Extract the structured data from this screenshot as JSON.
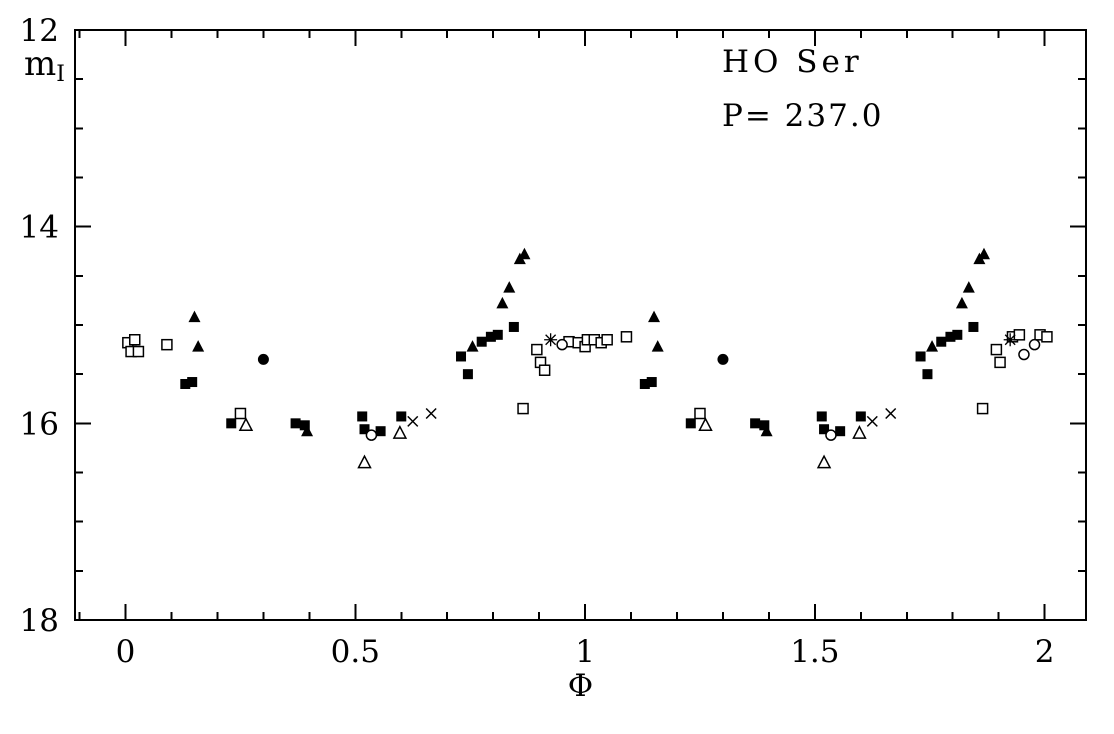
{
  "annotations": {
    "star_name": "HO Ser",
    "period_label": "P= 237.0"
  },
  "axis_labels": {
    "y_main": "m",
    "y_sub": "I",
    "x": "Φ"
  },
  "chart_data": {
    "type": "scatter",
    "title": "HO Ser",
    "annotation": "P= 237.0",
    "xlabel": "Φ",
    "ylabel": "m_I",
    "xlim": [
      -0.11,
      2.09
    ],
    "ylim": [
      18,
      12
    ],
    "y_inverted": true,
    "grid": false,
    "legend": "none",
    "x_ticks": {
      "major": [
        0,
        0.5,
        1,
        1.5,
        2
      ],
      "labels": [
        "0",
        "0.5",
        "1",
        "1.5",
        "2"
      ],
      "minor_step": 0.1
    },
    "y_ticks": {
      "major": [
        12,
        14,
        16,
        18
      ],
      "labels": [
        "12",
        "14",
        "16",
        "18"
      ],
      "minor_step": 0.5
    },
    "series": [
      {
        "name": "filled squares",
        "marker": "filled-square",
        "points": [
          [
            0.13,
            15.6
          ],
          [
            0.145,
            15.58
          ],
          [
            0.23,
            16.0
          ],
          [
            0.37,
            16.0
          ],
          [
            0.39,
            16.02
          ],
          [
            0.515,
            15.93
          ],
          [
            0.52,
            16.06
          ],
          [
            0.555,
            16.08
          ],
          [
            0.6,
            15.93
          ],
          [
            0.73,
            15.32
          ],
          [
            0.745,
            15.5
          ],
          [
            0.775,
            15.17
          ],
          [
            0.795,
            15.12
          ],
          [
            0.81,
            15.1
          ],
          [
            0.845,
            15.02
          ],
          [
            1.13,
            15.6
          ],
          [
            1.145,
            15.58
          ],
          [
            1.23,
            16.0
          ],
          [
            1.37,
            16.0
          ],
          [
            1.39,
            16.02
          ],
          [
            1.515,
            15.93
          ],
          [
            1.52,
            16.06
          ],
          [
            1.555,
            16.08
          ],
          [
            1.6,
            15.93
          ],
          [
            1.73,
            15.32
          ],
          [
            1.745,
            15.5
          ],
          [
            1.775,
            15.17
          ],
          [
            1.795,
            15.12
          ],
          [
            1.81,
            15.1
          ],
          [
            1.845,
            15.02
          ]
        ]
      },
      {
        "name": "filled triangles",
        "marker": "filled-triangle",
        "points": [
          [
            0.15,
            14.92
          ],
          [
            0.158,
            15.22
          ],
          [
            0.395,
            16.08
          ],
          [
            0.755,
            15.22
          ],
          [
            0.82,
            14.78
          ],
          [
            0.835,
            14.62
          ],
          [
            0.858,
            14.33
          ],
          [
            0.868,
            14.28
          ],
          [
            1.15,
            14.92
          ],
          [
            1.158,
            15.22
          ],
          [
            1.395,
            16.08
          ],
          [
            1.755,
            15.22
          ],
          [
            1.82,
            14.78
          ],
          [
            1.835,
            14.62
          ],
          [
            1.858,
            14.33
          ],
          [
            1.868,
            14.28
          ]
        ]
      },
      {
        "name": "open squares",
        "marker": "open-square",
        "points": [
          [
            0.005,
            15.18
          ],
          [
            0.02,
            15.15
          ],
          [
            0.012,
            15.27
          ],
          [
            0.028,
            15.27
          ],
          [
            0.09,
            15.2
          ],
          [
            0.25,
            15.9
          ],
          [
            0.865,
            15.85
          ],
          [
            0.895,
            15.25
          ],
          [
            0.903,
            15.38
          ],
          [
            0.912,
            15.46
          ],
          [
            0.965,
            15.17
          ],
          [
            0.985,
            15.18
          ],
          [
            1.0,
            15.22
          ],
          [
            1.005,
            15.15
          ],
          [
            1.02,
            15.15
          ],
          [
            1.035,
            15.18
          ],
          [
            1.048,
            15.15
          ],
          [
            1.09,
            15.12
          ],
          [
            1.25,
            15.9
          ],
          [
            1.865,
            15.85
          ],
          [
            1.895,
            15.25
          ],
          [
            1.903,
            15.38
          ],
          [
            1.93,
            15.12
          ],
          [
            1.945,
            15.1
          ],
          [
            1.99,
            15.1
          ],
          [
            2.005,
            15.12
          ]
        ]
      },
      {
        "name": "open triangles",
        "marker": "open-triangle",
        "points": [
          [
            0.262,
            16.02
          ],
          [
            0.52,
            16.4
          ],
          [
            0.597,
            16.1
          ],
          [
            1.262,
            16.02
          ],
          [
            1.52,
            16.4
          ],
          [
            1.597,
            16.1
          ]
        ]
      },
      {
        "name": "filled circles",
        "marker": "filled-circle",
        "points": [
          [
            0.3,
            15.35
          ],
          [
            1.3,
            15.35
          ]
        ]
      },
      {
        "name": "open circles",
        "marker": "open-circle",
        "points": [
          [
            0.535,
            16.12
          ],
          [
            0.95,
            15.2
          ],
          [
            1.535,
            16.12
          ],
          [
            1.955,
            15.3
          ],
          [
            1.978,
            15.2
          ]
        ]
      },
      {
        "name": "crosses",
        "marker": "cross",
        "points": [
          [
            0.625,
            15.98
          ],
          [
            0.665,
            15.9
          ],
          [
            1.625,
            15.98
          ],
          [
            1.665,
            15.9
          ]
        ]
      },
      {
        "name": "asterisks",
        "marker": "asterisk",
        "points": [
          [
            0.925,
            15.15
          ],
          [
            1.925,
            15.15
          ]
        ]
      }
    ]
  }
}
